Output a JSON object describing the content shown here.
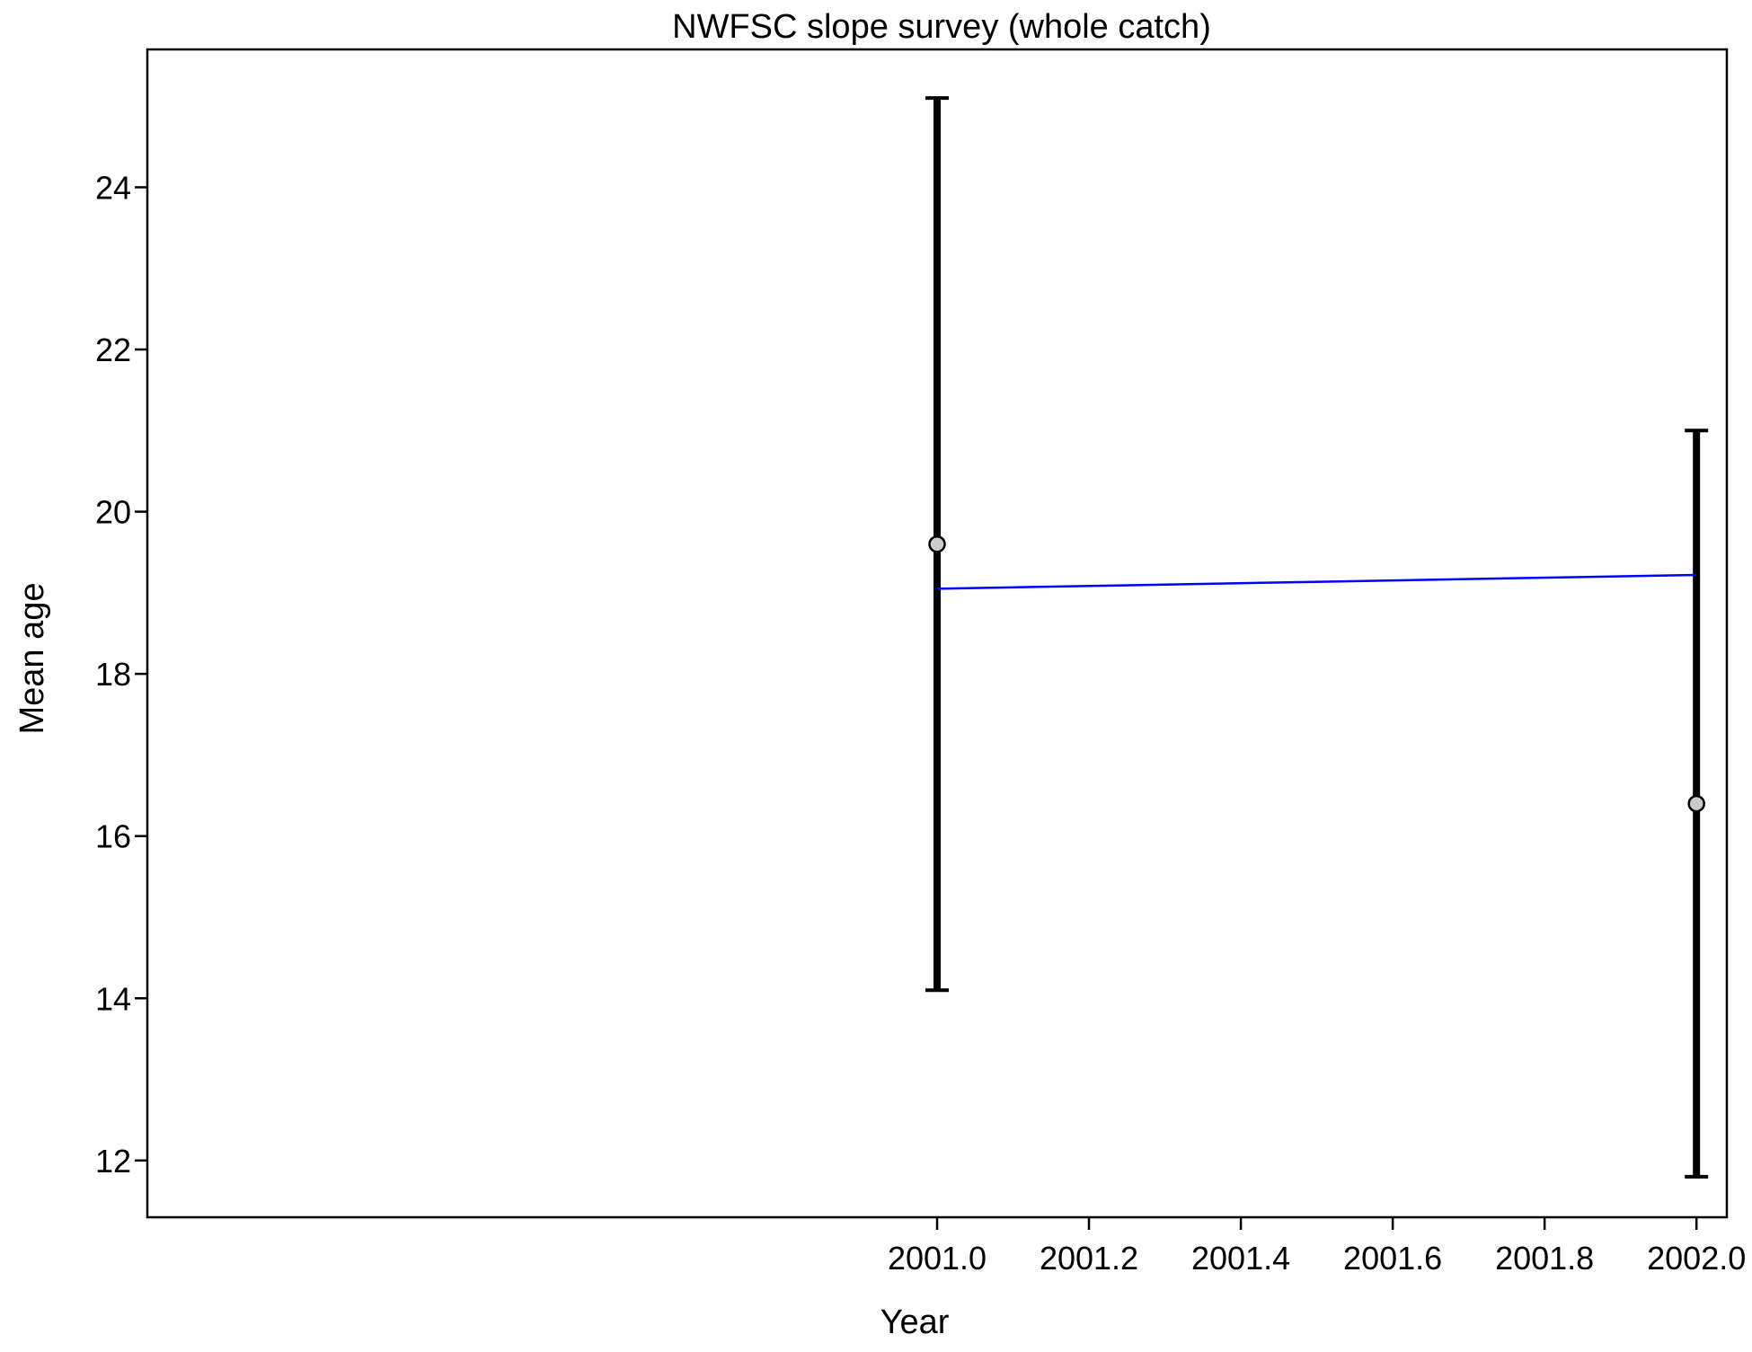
{
  "chart_data": {
    "type": "scatter",
    "title": "NWFSC slope survey (whole catch)",
    "xlabel": "Year",
    "ylabel": "Mean age",
    "xlim": [
      1999.96,
      2002.04
    ],
    "ylim": [
      11.3,
      25.7
    ],
    "x_ticks": [
      2001.0,
      2001.2,
      2001.4,
      2001.6,
      2001.8,
      2002.0
    ],
    "x_tick_labels": [
      "2001.0",
      "2001.2",
      "2001.4",
      "2001.6",
      "2001.8",
      "2002.0"
    ],
    "y_ticks": [
      12,
      14,
      16,
      18,
      20,
      22,
      24
    ],
    "y_tick_labels": [
      "12",
      "14",
      "16",
      "18",
      "20",
      "22",
      "24"
    ],
    "grid": false,
    "legend": "none",
    "observations": [
      {
        "x": 2001.0,
        "y": 19.6,
        "lower": 14.1,
        "upper": 25.1
      },
      {
        "x": 2002.0,
        "y": 16.4,
        "lower": 11.8,
        "upper": 21.0
      }
    ],
    "fitted_line": {
      "x": [
        2001.0,
        2002.0
      ],
      "y": [
        19.05,
        19.22
      ]
    },
    "colors": {
      "fitted_line": "#0000ff",
      "error_bar": "#000000",
      "point_fill": "#cccccc",
      "point_stroke": "#000000",
      "frame": "#000000"
    }
  }
}
